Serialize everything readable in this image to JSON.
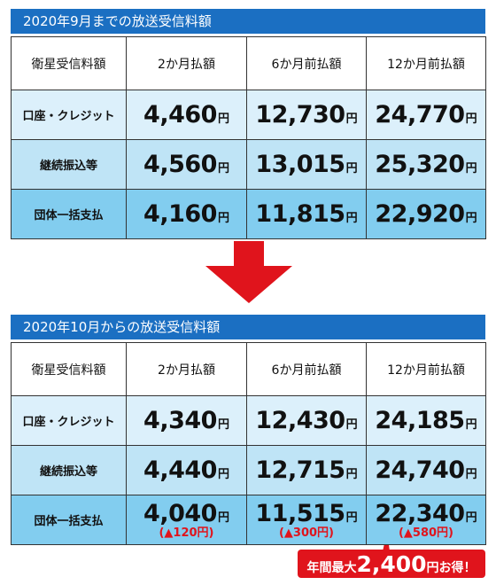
{
  "sections": [
    {
      "title": "2020年9月までの放送受信料額",
      "header": [
        "衛星受信料額",
        "2か月払額",
        "6か月前払額",
        "12か月前払額"
      ],
      "rows": [
        {
          "label": "口座・クレジット",
          "cells": [
            {
              "amount": "4,460",
              "unit": "円"
            },
            {
              "amount": "12,730",
              "unit": "円"
            },
            {
              "amount": "24,770",
              "unit": "円"
            }
          ]
        },
        {
          "label": "継続振込等",
          "cells": [
            {
              "amount": "4,560",
              "unit": "円"
            },
            {
              "amount": "13,015",
              "unit": "円"
            },
            {
              "amount": "25,320",
              "unit": "円"
            }
          ]
        },
        {
          "label": "団体一括支払",
          "cells": [
            {
              "amount": "4,160",
              "unit": "円"
            },
            {
              "amount": "11,815",
              "unit": "円"
            },
            {
              "amount": "22,920",
              "unit": "円"
            }
          ]
        }
      ]
    },
    {
      "title": "2020年10月からの放送受信料額",
      "header": [
        "衛星受信料額",
        "2か月払額",
        "6か月前払額",
        "12か月前払額"
      ],
      "rows": [
        {
          "label": "口座・クレジット",
          "cells": [
            {
              "amount": "4,340",
              "unit": "円"
            },
            {
              "amount": "12,430",
              "unit": "円"
            },
            {
              "amount": "24,185",
              "unit": "円"
            }
          ]
        },
        {
          "label": "継続振込等",
          "cells": [
            {
              "amount": "4,440",
              "unit": "円"
            },
            {
              "amount": "12,715",
              "unit": "円"
            },
            {
              "amount": "24,740",
              "unit": "円"
            }
          ]
        },
        {
          "label": "団体一括支払",
          "cells": [
            {
              "amount": "4,040",
              "unit": "円",
              "note": "(▲120円)"
            },
            {
              "amount": "11,515",
              "unit": "円",
              "note": "(▲300円)"
            },
            {
              "amount": "22,340",
              "unit": "円",
              "note": "(▲580円)"
            }
          ]
        }
      ]
    }
  ],
  "callout": {
    "prefix": "年間最大",
    "amount": "2,400",
    "suffix": "円お得！"
  }
}
